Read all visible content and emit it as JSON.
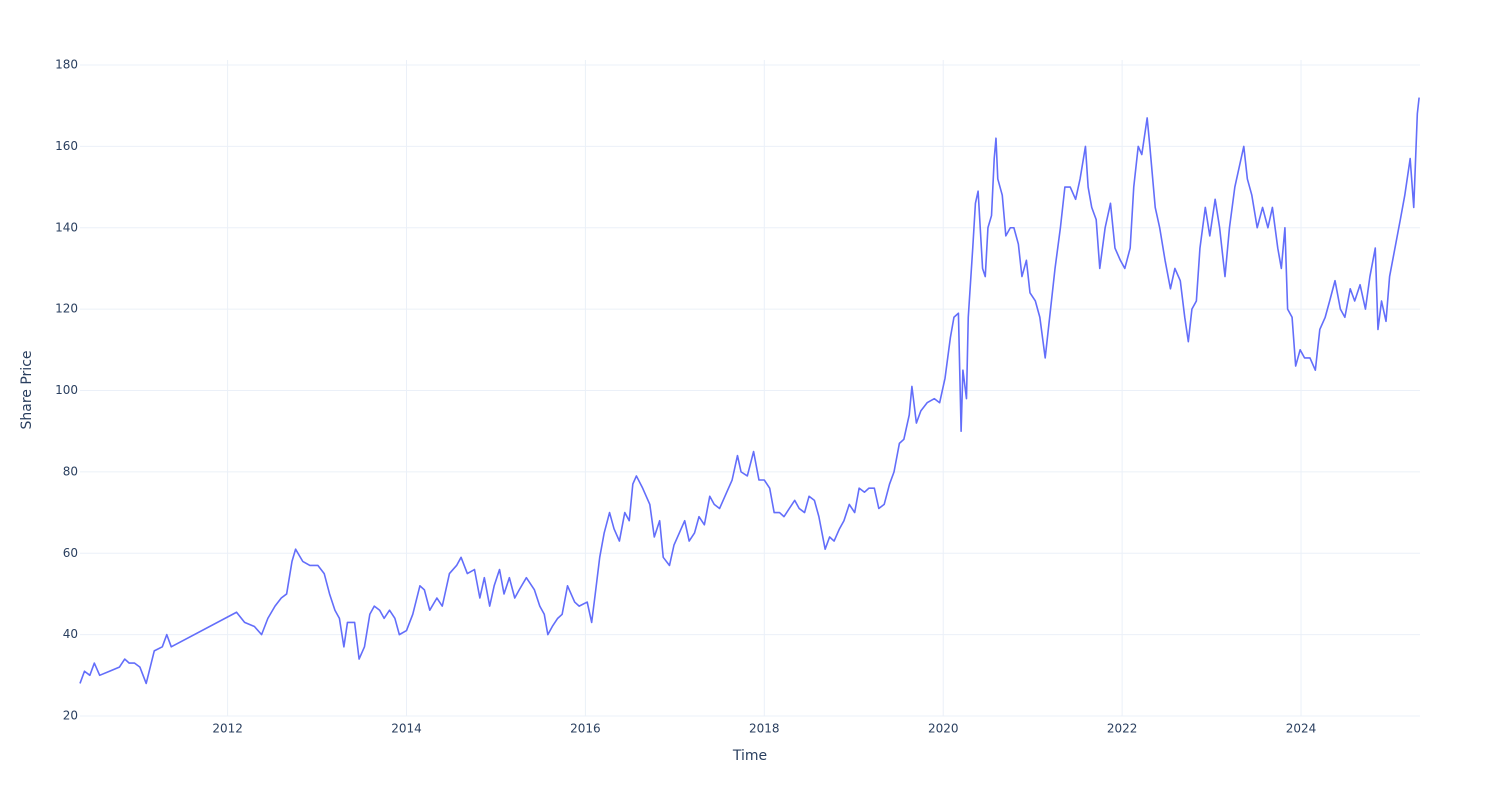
{
  "chart_data": {
    "type": "line",
    "x_label": "Time",
    "y_label": "Share Price",
    "xlim": [
      2010.35,
      2025.33
    ],
    "xticks": [
      2012,
      2014,
      2016,
      2018,
      2020,
      2022,
      2024
    ],
    "ylim": [
      20,
      180
    ],
    "yticks": [
      20,
      40,
      60,
      80,
      100,
      120,
      140,
      160,
      180
    ],
    "grid": true,
    "series": [
      {
        "color": "#636efa",
        "x": [
          2010.35,
          2010.4,
          2010.46,
          2010.51,
          2010.57,
          2010.68,
          2010.79,
          2010.85,
          2010.9,
          2010.96,
          2011.02,
          2011.09,
          2011.18,
          2011.27,
          2011.32,
          2011.37,
          2012.1,
          2012.19,
          2012.3,
          2012.38,
          2012.45,
          2012.53,
          2012.6,
          2012.66,
          2012.72,
          2012.76,
          2012.84,
          2012.92,
          2013.01,
          2013.08,
          2013.14,
          2013.2,
          2013.25,
          2013.3,
          2013.34,
          2013.42,
          2013.47,
          2013.53,
          2013.59,
          2013.64,
          2013.7,
          2013.75,
          2013.81,
          2013.87,
          2013.92,
          2014.0,
          2014.07,
          2014.15,
          2014.2,
          2014.26,
          2014.34,
          2014.4,
          2014.48,
          2014.56,
          2014.61,
          2014.68,
          2014.76,
          2014.82,
          2014.87,
          2014.93,
          2014.98,
          2015.04,
          2015.09,
          2015.15,
          2015.21,
          2015.26,
          2015.34,
          2015.43,
          2015.49,
          2015.54,
          2015.58,
          2015.63,
          2015.69,
          2015.74,
          2015.8,
          2015.88,
          2015.93,
          2016.02,
          2016.07,
          2016.11,
          2016.16,
          2016.21,
          2016.27,
          2016.32,
          2016.38,
          2016.44,
          2016.49,
          2016.53,
          2016.57,
          2016.64,
          2016.72,
          2016.77,
          2016.83,
          2016.87,
          2016.94,
          2016.99,
          2017.05,
          2017.11,
          2017.16,
          2017.22,
          2017.27,
          2017.33,
          2017.39,
          2017.44,
          2017.5,
          2017.58,
          2017.64,
          2017.7,
          2017.74,
          2017.81,
          2017.88,
          2017.94,
          2018.0,
          2018.06,
          2018.11,
          2018.17,
          2018.22,
          2018.28,
          2018.34,
          2018.39,
          2018.45,
          2018.5,
          2018.56,
          2018.61,
          2018.68,
          2018.73,
          2018.78,
          2018.84,
          2018.89,
          2018.95,
          2019.01,
          2019.06,
          2019.12,
          2019.17,
          2019.23,
          2019.28,
          2019.34,
          2019.4,
          2019.45,
          2019.51,
          2019.56,
          2019.62,
          2019.65,
          2019.7,
          2019.75,
          2019.82,
          2019.9,
          2019.96,
          2020.02,
          2020.08,
          2020.12,
          2020.17,
          2020.2,
          2020.22,
          2020.26,
          2020.28,
          2020.33,
          2020.36,
          2020.39,
          2020.44,
          2020.47,
          2020.5,
          2020.54,
          2020.57,
          2020.59,
          2020.61,
          2020.66,
          2020.7,
          2020.75,
          2020.79,
          2020.84,
          2020.88,
          2020.93,
          2020.97,
          2021.03,
          2021.08,
          2021.14,
          2021.2,
          2021.25,
          2021.31,
          2021.36,
          2021.42,
          2021.48,
          2021.53,
          2021.59,
          2021.62,
          2021.66,
          2021.71,
          2021.75,
          2021.81,
          2021.87,
          2021.92,
          2021.98,
          2022.03,
          2022.09,
          2022.13,
          2022.18,
          2022.22,
          2022.28,
          2022.31,
          2022.37,
          2022.42,
          2022.48,
          2022.54,
          2022.59,
          2022.65,
          2022.7,
          2022.74,
          2022.78,
          2022.83,
          2022.87,
          2022.93,
          2022.98,
          2023.04,
          2023.09,
          2023.15,
          2023.2,
          2023.26,
          2023.31,
          2023.36,
          2023.4,
          2023.45,
          2023.51,
          2023.57,
          2023.63,
          2023.68,
          2023.74,
          2023.78,
          2023.82,
          2023.85,
          2023.9,
          2023.94,
          2023.99,
          2024.04,
          2024.1,
          2024.16,
          2024.21,
          2024.27,
          2024.32,
          2024.38,
          2024.44,
          2024.49,
          2024.55,
          2024.6,
          2024.66,
          2024.72,
          2024.77,
          2024.83,
          2024.86,
          2024.9,
          2024.95,
          2024.99,
          2025.05,
          2025.11,
          2025.16,
          2025.22,
          2025.26,
          2025.3,
          2025.32
        ],
        "values": [
          28,
          31,
          30,
          33,
          30,
          31,
          32,
          34,
          33,
          33,
          32,
          28,
          36,
          37,
          40,
          37,
          45.5,
          43,
          42,
          40,
          44,
          47,
          49,
          50,
          58,
          61,
          58,
          57,
          57,
          55,
          50,
          46,
          44,
          37,
          43,
          43,
          34,
          37,
          45,
          47,
          46,
          44,
          46,
          44,
          40,
          41,
          45,
          52,
          51,
          46,
          49,
          47,
          55,
          57,
          59,
          55,
          56,
          49,
          54,
          47,
          52,
          56,
          50,
          54,
          49,
          51,
          54,
          51,
          47,
          45,
          40,
          42,
          44,
          45,
          52,
          48,
          47,
          48,
          43,
          50,
          59,
          65,
          70,
          66,
          63,
          70,
          68,
          77,
          79,
          76,
          72,
          64,
          68,
          59,
          57,
          62,
          65,
          68,
          63,
          65,
          69,
          67,
          74,
          72,
          71,
          75,
          78,
          84,
          80,
          79,
          85,
          78,
          78,
          76,
          70,
          70,
          69,
          71,
          73,
          71,
          70,
          74,
          73,
          69,
          61,
          64,
          63,
          66,
          68,
          72,
          70,
          76,
          75,
          76,
          76,
          71,
          72,
          77,
          80,
          87,
          88,
          94,
          101,
          92,
          95,
          97,
          98,
          97,
          103,
          113,
          118,
          119,
          90,
          105,
          98,
          118,
          135,
          146,
          149,
          130,
          128,
          140,
          143,
          157,
          162,
          152,
          148,
          138,
          140,
          140,
          136,
          128,
          132,
          124,
          122,
          118,
          108,
          120,
          130,
          140,
          150,
          150,
          147,
          152,
          160,
          150,
          145,
          142,
          130,
          140,
          146,
          135,
          132,
          130,
          135,
          150,
          160,
          158,
          167,
          160,
          145,
          140,
          132,
          125,
          130,
          127,
          118,
          112,
          120,
          122,
          135,
          145,
          138,
          147,
          140,
          128,
          140,
          150,
          155,
          160,
          152,
          148,
          140,
          145,
          140,
          145,
          135,
          130,
          140,
          120,
          118,
          106,
          110,
          108,
          108,
          105,
          115,
          118,
          122,
          127,
          120,
          118,
          125,
          122,
          126,
          120,
          128,
          135,
          115,
          122,
          117,
          128,
          135,
          142,
          148,
          157,
          145,
          168,
          172
        ]
      }
    ]
  }
}
